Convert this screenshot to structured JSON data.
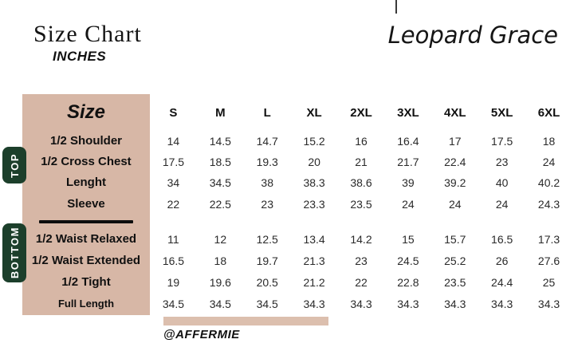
{
  "header": {
    "title": "Size Chart",
    "subtitle": "INCHES",
    "product_name": "Leopard Grace"
  },
  "table": {
    "corner_label": "Size",
    "size_columns": [
      "S",
      "M",
      "L",
      "XL",
      "2XL",
      "3XL",
      "4XL",
      "5XL",
      "6XL"
    ],
    "sections": [
      {
        "label": "TOP",
        "rows": [
          {
            "label": "1/2 Shoulder",
            "values": [
              "14",
              "14.5",
              "14.7",
              "15.2",
              "16",
              "16.4",
              "17",
              "17.5",
              "18"
            ]
          },
          {
            "label": "1/2 Cross Chest",
            "values": [
              "17.5",
              "18.5",
              "19.3",
              "20",
              "21",
              "21.7",
              "22.4",
              "23",
              "24"
            ]
          },
          {
            "label": "Lenght",
            "values": [
              "34",
              "34.5",
              "38",
              "38.3",
              "38.6",
              "39",
              "39.2",
              "40",
              "40.2"
            ]
          },
          {
            "label": "Sleeve",
            "values": [
              "22",
              "22.5",
              "23",
              "23.3",
              "23.5",
              "24",
              "24",
              "24",
              "24.3"
            ]
          }
        ]
      },
      {
        "label": "BOTTOM",
        "rows": [
          {
            "label": "1/2 Waist Relaxed",
            "values": [
              "11",
              "12",
              "12.5",
              "13.4",
              "14.2",
              "15",
              "15.7",
              "16.5",
              "17.3"
            ]
          },
          {
            "label": "1/2 Waist Extended",
            "values": [
              "16.5",
              "18",
              "19.7",
              "21.3",
              "23",
              "24.5",
              "25.2",
              "26",
              "27.6"
            ]
          },
          {
            "label": "1/2 Tight",
            "values": [
              "19",
              "19.6",
              "20.5",
              "21.2",
              "22",
              "22.8",
              "23.5",
              "24.4",
              "25"
            ]
          },
          {
            "label": "Full Length",
            "label_small": true,
            "values": [
              "34.5",
              "34.5",
              "34.5",
              "34.3",
              "34.3",
              "34.3",
              "34.3",
              "34.3",
              "34.3"
            ]
          }
        ]
      }
    ]
  },
  "footer": {
    "handle": "@AFFERMIE"
  },
  "colors": {
    "accent_tan": "#d7b7a6",
    "footer_bar_tan": "#dcbfae",
    "badge_green": "#1c3f2b",
    "text_dark": "#1c1c1c"
  },
  "chart_data": {
    "type": "table",
    "title": "Size Chart",
    "units": "INCHES",
    "product": "Leopard Grace",
    "columns": [
      "Size",
      "S",
      "M",
      "L",
      "XL",
      "2XL",
      "3XL",
      "4XL",
      "5XL",
      "6XL"
    ],
    "rows": [
      {
        "section": "TOP",
        "measurement": "1/2 Shoulder",
        "values": [
          14,
          14.5,
          14.7,
          15.2,
          16,
          16.4,
          17,
          17.5,
          18
        ]
      },
      {
        "section": "TOP",
        "measurement": "1/2 Cross Chest",
        "values": [
          17.5,
          18.5,
          19.3,
          20,
          21,
          21.7,
          22.4,
          23,
          24
        ]
      },
      {
        "section": "TOP",
        "measurement": "Lenght",
        "values": [
          34,
          34.5,
          38,
          38.3,
          38.6,
          39,
          39.2,
          40,
          40.2
        ]
      },
      {
        "section": "TOP",
        "measurement": "Sleeve",
        "values": [
          22,
          22.5,
          23,
          23.3,
          23.5,
          24,
          24,
          24,
          24.3
        ]
      },
      {
        "section": "BOTTOM",
        "measurement": "1/2 Waist Relaxed",
        "values": [
          11,
          12,
          12.5,
          13.4,
          14.2,
          15,
          15.7,
          16.5,
          17.3
        ]
      },
      {
        "section": "BOTTOM",
        "measurement": "1/2 Waist Extended",
        "values": [
          16.5,
          18,
          19.7,
          21.3,
          23,
          24.5,
          25.2,
          26,
          27.6
        ]
      },
      {
        "section": "BOTTOM",
        "measurement": "1/2 Tight",
        "values": [
          19,
          19.6,
          20.5,
          21.2,
          22,
          22.8,
          23.5,
          24.4,
          25
        ]
      },
      {
        "section": "BOTTOM",
        "measurement": "Full Length",
        "values": [
          34.5,
          34.5,
          34.5,
          34.3,
          34.3,
          34.3,
          34.3,
          34.3,
          34.3
        ]
      }
    ]
  }
}
